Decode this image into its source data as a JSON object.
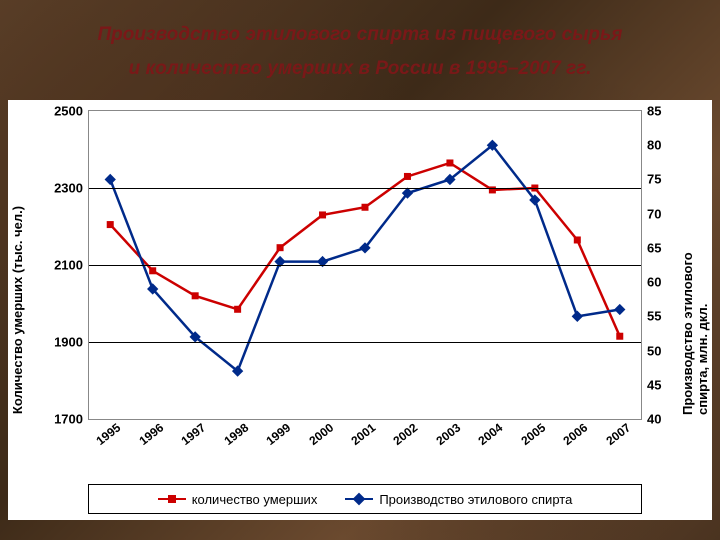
{
  "title_line1": "Производство этилового спирта из пищевого сырья",
  "title_line2": "и количество умерших в России в 1995–2007 гг.",
  "title_color": "#7a1818",
  "chart": {
    "type": "line-dual-axis",
    "background_color": "#ffffff",
    "grid_color": "#000000",
    "plot_border_color": "#888888",
    "y_left": {
      "label": "Количество умерших (тыс. чел.)",
      "min": 1700,
      "max": 2500,
      "step": 200,
      "ticks": [
        1700,
        1900,
        2100,
        2300,
        2500
      ],
      "label_fontsize": 13
    },
    "y_right": {
      "label": "Производство этилового спирта, млн. дкл.",
      "min": 40,
      "max": 85,
      "step": 5,
      "ticks": [
        40,
        45,
        50,
        55,
        60,
        65,
        70,
        75,
        80,
        85
      ],
      "label_fontsize": 13
    },
    "x_categories": [
      "1995",
      "1996",
      "1997",
      "1998",
      "1999",
      "2000",
      "2001",
      "2002",
      "2003",
      "2004",
      "2005",
      "2006",
      "2007"
    ],
    "x_label_rotation_deg": -38,
    "series": [
      {
        "name": "количество умерших",
        "axis": "left",
        "color": "#cc0000",
        "line_width": 2.5,
        "marker": "square",
        "marker_size": 7,
        "values": [
          2205,
          2085,
          2020,
          1985,
          2145,
          2230,
          2250,
          2330,
          2365,
          2295,
          2300,
          2165,
          1915
        ]
      },
      {
        "name": "Производство этилового спирта",
        "axis": "right",
        "color": "#002a8a",
        "line_width": 2.5,
        "marker": "diamond",
        "marker_size": 8,
        "values": [
          75,
          59,
          52,
          47,
          63,
          63,
          65,
          73,
          75,
          80,
          72,
          55,
          56
        ]
      }
    ],
    "legend": {
      "border_color": "#000000",
      "fontsize": 13,
      "items": [
        "количество умерших",
        "Производство этилового спирта"
      ]
    }
  }
}
